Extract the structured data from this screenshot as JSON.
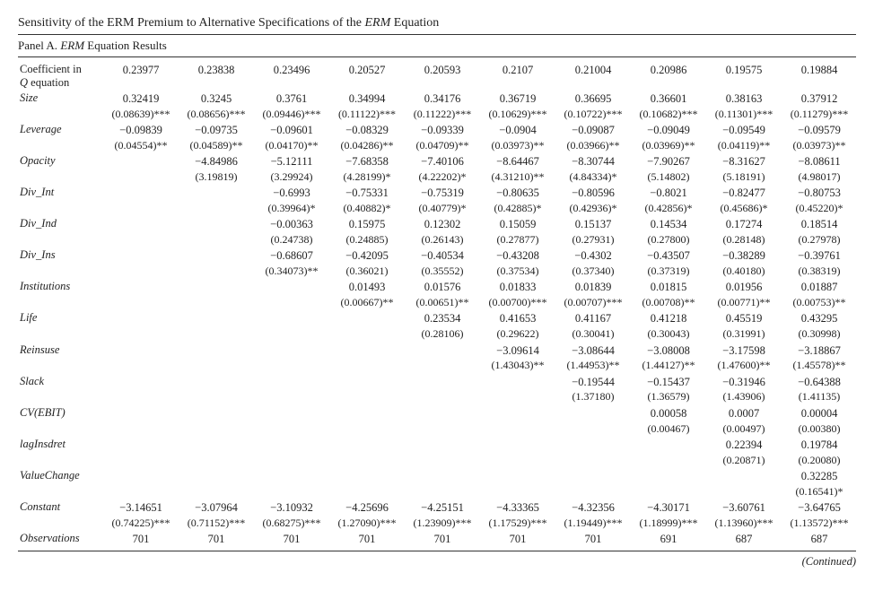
{
  "title_parts": [
    "Sensitivity of the ERM Premium to Alternative Specifications of the ",
    "ERM",
    " Equation"
  ],
  "panel_parts": [
    "Panel A. ",
    "ERM",
    " Equation Results"
  ],
  "continued_text": "(Continued)",
  "col_widths": {
    "label": 95,
    "data": 84
  },
  "rows": [
    {
      "label": [
        "Coefficient in ",
        [
          "Q",
          true
        ],
        " equation"
      ],
      "coef": [
        "0.23977",
        "0.23838",
        "0.23496",
        "0.20527",
        "0.20593",
        "0.2107",
        "0.21004",
        "0.20986",
        "0.19575",
        "0.19884"
      ],
      "se": [
        "",
        "",
        "",
        "",
        "",
        "",
        "",
        "",
        "",
        ""
      ]
    },
    {
      "label": [
        [
          "Size",
          true
        ]
      ],
      "coef": [
        "0.32419",
        "0.3245",
        "0.3761",
        "0.34994",
        "0.34176",
        "0.36719",
        "0.36695",
        "0.36601",
        "0.38163",
        "0.37912"
      ],
      "se": [
        "(0.08639)***",
        "(0.08656)***",
        "(0.09446)***",
        "(0.11122)***",
        "(0.11222)***",
        "(0.10629)***",
        "(0.10722)***",
        "(0.10682)***",
        "(0.11301)***",
        "(0.11279)***"
      ]
    },
    {
      "label": [
        [
          "Leverage",
          true
        ]
      ],
      "coef": [
        "−0.09839",
        "−0.09735",
        "−0.09601",
        "−0.08329",
        "−0.09339",
        "−0.0904",
        "−0.09087",
        "−0.09049",
        "−0.09549",
        "−0.09579"
      ],
      "se": [
        "(0.04554)**",
        "(0.04589)**",
        "(0.04170)**",
        "(0.04286)**",
        "(0.04709)**",
        "(0.03973)**",
        "(0.03966)**",
        "(0.03969)**",
        "(0.04119)**",
        "(0.03973)**"
      ]
    },
    {
      "label": [
        [
          "Opacity",
          true
        ]
      ],
      "coef": [
        "",
        "−4.84986",
        "−5.12111",
        "−7.68358",
        "−7.40106",
        "−8.64467",
        "−8.30744",
        "−7.90267",
        "−8.31627",
        "−8.08611"
      ],
      "se": [
        "",
        "(3.19819)",
        "(3.29924)",
        "(4.28199)*",
        "(4.22202)*",
        "(4.31210)**",
        "(4.84334)*",
        "(5.14802)",
        "(5.18191)",
        "(4.98017)"
      ]
    },
    {
      "label": [
        [
          "Div_Int",
          true
        ]
      ],
      "coef": [
        "",
        "",
        "−0.6993",
        "−0.75331",
        "−0.75319",
        "−0.80635",
        "−0.80596",
        "−0.8021",
        "−0.82477",
        "−0.80753"
      ],
      "se": [
        "",
        "",
        "(0.39964)*",
        "(0.40882)*",
        "(0.40779)*",
        "(0.42885)*",
        "(0.42936)*",
        "(0.42856)*",
        "(0.45686)*",
        "(0.45220)*"
      ]
    },
    {
      "label": [
        [
          "Div_Ind",
          true
        ]
      ],
      "coef": [
        "",
        "",
        "−0.00363",
        "0.15975",
        "0.12302",
        "0.15059",
        "0.15137",
        "0.14534",
        "0.17274",
        "0.18514"
      ],
      "se": [
        "",
        "",
        "(0.24738)",
        "(0.24885)",
        "(0.26143)",
        "(0.27877)",
        "(0.27931)",
        "(0.27800)",
        "(0.28148)",
        "(0.27978)"
      ]
    },
    {
      "label": [
        [
          "Div_Ins",
          true
        ]
      ],
      "coef": [
        "",
        "",
        "−0.68607",
        "−0.42095",
        "−0.40534",
        "−0.43208",
        "−0.4302",
        "−0.43507",
        "−0.38289",
        "−0.39761"
      ],
      "se": [
        "",
        "",
        "(0.34073)**",
        "(0.36021)",
        "(0.35552)",
        "(0.37534)",
        "(0.37340)",
        "(0.37319)",
        "(0.40180)",
        "(0.38319)"
      ]
    },
    {
      "label": [
        [
          "Institutions",
          true
        ]
      ],
      "coef": [
        "",
        "",
        "",
        "0.01493",
        "0.01576",
        "0.01833",
        "0.01839",
        "0.01815",
        "0.01956",
        "0.01887"
      ],
      "se": [
        "",
        "",
        "",
        "(0.00667)**",
        "(0.00651)**",
        "(0.00700)***",
        "(0.00707)***",
        "(0.00708)**",
        "(0.00771)**",
        "(0.00753)**"
      ]
    },
    {
      "label": [
        [
          "Life",
          true
        ]
      ],
      "coef": [
        "",
        "",
        "",
        "",
        "0.23534",
        "0.41653",
        "0.41167",
        "0.41218",
        "0.45519",
        "0.43295"
      ],
      "se": [
        "",
        "",
        "",
        "",
        "(0.28106)",
        "(0.29622)",
        "(0.30041)",
        "(0.30043)",
        "(0.31991)",
        "(0.30998)"
      ]
    },
    {
      "label": [
        [
          "Reinsuse",
          true
        ]
      ],
      "coef": [
        "",
        "",
        "",
        "",
        "",
        "−3.09614",
        "−3.08644",
        "−3.08008",
        "−3.17598",
        "−3.18867"
      ],
      "se": [
        "",
        "",
        "",
        "",
        "",
        "(1.43043)**",
        "(1.44953)**",
        "(1.44127)**",
        "(1.47600)**",
        "(1.45578)**"
      ]
    },
    {
      "label": [
        [
          "Slack",
          true
        ]
      ],
      "coef": [
        "",
        "",
        "",
        "",
        "",
        "",
        "−0.19544",
        "−0.15437",
        "−0.31946",
        "−0.64388"
      ],
      "se": [
        "",
        "",
        "",
        "",
        "",
        "",
        "(1.37180)",
        "(1.36579)",
        "(1.43906)",
        "(1.41135)"
      ]
    },
    {
      "label": [
        [
          "CV(EBIT)",
          true
        ]
      ],
      "coef": [
        "",
        "",
        "",
        "",
        "",
        "",
        "",
        "0.00058",
        "0.0007",
        "0.00004"
      ],
      "se": [
        "",
        "",
        "",
        "",
        "",
        "",
        "",
        "(0.00467)",
        "(0.00497)",
        "(0.00380)"
      ]
    },
    {
      "label": [
        [
          "lagInsdret",
          true
        ]
      ],
      "coef": [
        "",
        "",
        "",
        "",
        "",
        "",
        "",
        "",
        "0.22394",
        "0.19784"
      ],
      "se": [
        "",
        "",
        "",
        "",
        "",
        "",
        "",
        "",
        "(0.20871)",
        "(0.20080)"
      ]
    },
    {
      "label": [
        [
          "ValueChange",
          true
        ]
      ],
      "coef": [
        "",
        "",
        "",
        "",
        "",
        "",
        "",
        "",
        "",
        "0.32285"
      ],
      "se": [
        "",
        "",
        "",
        "",
        "",
        "",
        "",
        "",
        "",
        "(0.16541)*"
      ]
    },
    {
      "label": [
        [
          "Constant",
          true
        ]
      ],
      "coef": [
        "−3.14651",
        "−3.07964",
        "−3.10932",
        "−4.25696",
        "−4.25151",
        "−4.33365",
        "−4.32356",
        "−4.30171",
        "−3.60761",
        "−3.64765"
      ],
      "se": [
        "(0.74225)***",
        "(0.71152)***",
        "(0.68275)***",
        "(1.27090)***",
        "(1.23909)***",
        "(1.17529)***",
        "(1.19449)***",
        "(1.18999)***",
        "(1.13960)***",
        "(1.13572)***"
      ]
    },
    {
      "label": [
        [
          "Observations",
          true
        ]
      ],
      "coef": [
        "701",
        "701",
        "701",
        "701",
        "701",
        "701",
        "701",
        "691",
        "687",
        "687"
      ],
      "se": [
        "",
        "",
        "",
        "",
        "",
        "",
        "",
        "",
        "",
        ""
      ]
    }
  ]
}
